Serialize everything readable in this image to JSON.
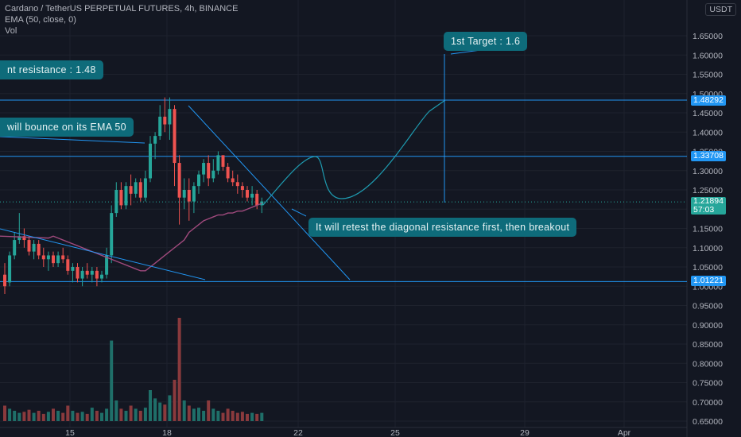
{
  "legend": {
    "title": "Cardano / TetherUS PERPETUAL FUTURES, 4h, BINANCE",
    "ema": "EMA (50, close, 0)",
    "vol": "Vol"
  },
  "axis_unit": "USDT",
  "current_price": {
    "value": "1.21894",
    "countdown": "57:03"
  },
  "level_tags": [
    "1.48292",
    "1.33708",
    "1.01221"
  ],
  "annotations": {
    "target": "1st Target : 1.6",
    "resistance": "nt resistance : 1.48",
    "ema_bounce": "will bounce on its EMA 50",
    "retest": "It will retest the diagonal resistance first, then breakout"
  },
  "colors": {
    "up": "#26a69a",
    "down": "#ef5350",
    "ema": "#a04a7d",
    "drawing": "#2196f3",
    "projection": "#1e9bb0"
  },
  "chart_data": {
    "type": "candlestick",
    "title": "Cardano / TetherUS PERPETUAL FUTURES, 4h, BINANCE",
    "ylim": [
      0.64,
      1.66
    ],
    "y_ticks": [
      "1.65000",
      "1.60000",
      "1.55000",
      "1.50000",
      "1.45000",
      "1.40000",
      "1.35000",
      "1.30000",
      "1.25000",
      "1.20000",
      "1.15000",
      "1.10000",
      "1.05000",
      "1.00000",
      "0.95000",
      "0.90000",
      "0.85000",
      "0.80000",
      "0.75000",
      "0.70000",
      "0.65000"
    ],
    "x_ticks": [
      "15",
      "18",
      "22",
      "25",
      "29",
      "Apr"
    ],
    "candles": [
      [
        1.03,
        1.06,
        0.98,
        1.0
      ],
      [
        1.01,
        1.09,
        1.0,
        1.08
      ],
      [
        1.08,
        1.14,
        1.07,
        1.12
      ],
      [
        1.12,
        1.19,
        1.11,
        1.13
      ],
      [
        1.13,
        1.15,
        1.1,
        1.12
      ],
      [
        1.12,
        1.13,
        1.08,
        1.09
      ],
      [
        1.09,
        1.12,
        1.07,
        1.11
      ],
      [
        1.11,
        1.12,
        1.07,
        1.08
      ],
      [
        1.08,
        1.1,
        1.05,
        1.07
      ],
      [
        1.07,
        1.09,
        1.04,
        1.08
      ],
      [
        1.08,
        1.09,
        1.05,
        1.06
      ],
      [
        1.06,
        1.09,
        1.05,
        1.08
      ],
      [
        1.08,
        1.1,
        1.06,
        1.07
      ],
      [
        1.07,
        1.08,
        1.03,
        1.04
      ],
      [
        1.04,
        1.06,
        1.01,
        1.05
      ],
      [
        1.05,
        1.06,
        1.01,
        1.02
      ],
      [
        1.02,
        1.05,
        1.0,
        1.04
      ],
      [
        1.04,
        1.06,
        1.02,
        1.03
      ],
      [
        1.03,
        1.05,
        1.01,
        1.04
      ],
      [
        1.04,
        1.05,
        1.0,
        1.02
      ],
      [
        1.02,
        1.04,
        1.01,
        1.03
      ],
      [
        1.03,
        1.1,
        1.02,
        1.08
      ],
      [
        1.08,
        1.21,
        1.06,
        1.19
      ],
      [
        1.19,
        1.27,
        1.18,
        1.25
      ],
      [
        1.25,
        1.27,
        1.2,
        1.21
      ],
      [
        1.21,
        1.27,
        1.2,
        1.26
      ],
      [
        1.26,
        1.29,
        1.21,
        1.24
      ],
      [
        1.24,
        1.28,
        1.23,
        1.27
      ],
      [
        1.27,
        1.28,
        1.22,
        1.23
      ],
      [
        1.23,
        1.3,
        1.22,
        1.28
      ],
      [
        1.28,
        1.39,
        1.27,
        1.37
      ],
      [
        1.37,
        1.4,
        1.33,
        1.39
      ],
      [
        1.39,
        1.47,
        1.38,
        1.44
      ],
      [
        1.44,
        1.49,
        1.4,
        1.42
      ],
      [
        1.42,
        1.49,
        1.38,
        1.46
      ],
      [
        1.46,
        1.47,
        1.26,
        1.32
      ],
      [
        1.32,
        1.34,
        1.16,
        1.23
      ],
      [
        1.23,
        1.28,
        1.2,
        1.25
      ],
      [
        1.25,
        1.28,
        1.17,
        1.22
      ],
      [
        1.22,
        1.27,
        1.19,
        1.26
      ],
      [
        1.26,
        1.3,
        1.24,
        1.29
      ],
      [
        1.29,
        1.33,
        1.27,
        1.32
      ],
      [
        1.32,
        1.34,
        1.26,
        1.28
      ],
      [
        1.28,
        1.33,
        1.27,
        1.3
      ],
      [
        1.3,
        1.35,
        1.29,
        1.34
      ],
      [
        1.34,
        1.34,
        1.3,
        1.31
      ],
      [
        1.31,
        1.32,
        1.27,
        1.28
      ],
      [
        1.28,
        1.3,
        1.26,
        1.27
      ],
      [
        1.27,
        1.29,
        1.24,
        1.26
      ],
      [
        1.26,
        1.27,
        1.23,
        1.25
      ],
      [
        1.25,
        1.26,
        1.22,
        1.23
      ],
      [
        1.23,
        1.26,
        1.21,
        1.24
      ],
      [
        1.24,
        1.25,
        1.2,
        1.21
      ],
      [
        1.21,
        1.23,
        1.19,
        1.22
      ]
    ],
    "volume_relative": [
      0.15,
      0.12,
      0.1,
      0.08,
      0.09,
      0.11,
      0.08,
      0.1,
      0.07,
      0.09,
      0.12,
      0.1,
      0.08,
      0.15,
      0.1,
      0.08,
      0.09,
      0.07,
      0.13,
      0.1,
      0.08,
      0.12,
      0.78,
      0.2,
      0.12,
      0.1,
      0.15,
      0.12,
      0.1,
      0.13,
      0.3,
      0.22,
      0.18,
      0.16,
      0.25,
      0.4,
      1.0,
      0.2,
      0.15,
      0.12,
      0.13,
      0.1,
      0.2,
      0.12,
      0.1,
      0.08,
      0.12,
      0.1,
      0.08,
      0.09,
      0.07,
      0.08,
      0.07,
      0.08
    ],
    "ema50": [
      1.13,
      1.125,
      1.12,
      1.115,
      1.11,
      1.105,
      1.1,
      1.095,
      1.09,
      1.085,
      1.08,
      1.075,
      1.07,
      1.065,
      1.06,
      1.055,
      1.05,
      1.045,
      1.04,
      1.04,
      1.05,
      1.06,
      1.07,
      1.08,
      1.09,
      1.1,
      1.11,
      1.12,
      1.14,
      1.15,
      1.16,
      1.17,
      1.175,
      1.18,
      1.185,
      1.185,
      1.19,
      1.19,
      1.195,
      1.195,
      1.2,
      1.205,
      1.21,
      1.215
    ],
    "horizontal_levels": [
      1.48292,
      1.33708,
      1.01221
    ],
    "current_price": 1.21894
  }
}
